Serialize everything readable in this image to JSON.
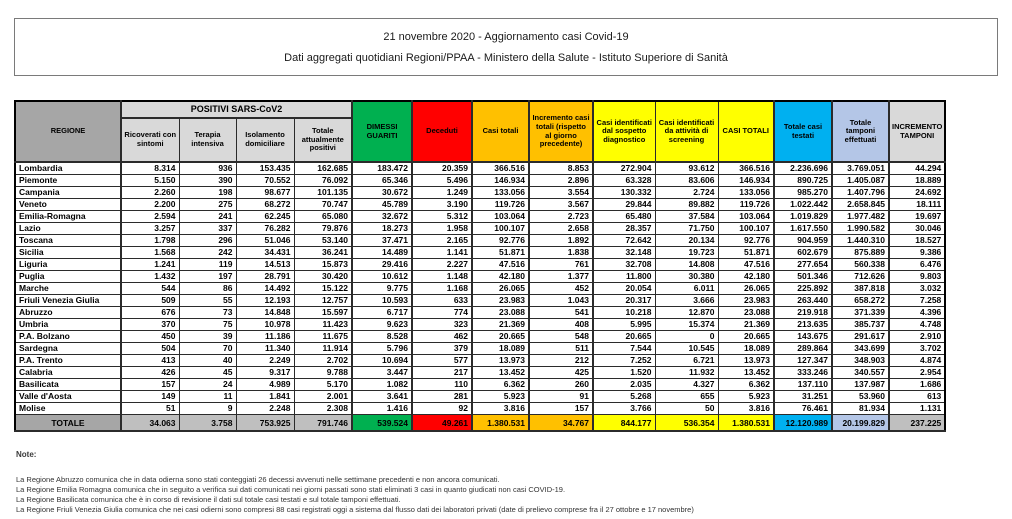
{
  "title": {
    "line1": "21 novembre 2020 - Aggiornamento casi Covid-19",
    "line2": "Dati aggregati quotidiani Regioni/PPAA - Ministero della Salute - Istituto Superiore di Sanità"
  },
  "table": {
    "header": {
      "regione": "REGIONE",
      "positivi_group": "POSITIVI SARS-CoV2",
      "sub": [
        "Ricoverati con sintomi",
        "Terapia intensiva",
        "Isolamento domiciliare",
        "Totale attualmente positivi"
      ],
      "dimessi": "DIMESSI GUARITI",
      "deceduti": "Deceduti",
      "casi_totali": "Casi totali",
      "incremento_casi": "Incremento casi totali (rispetto al giorno precedente)",
      "sospetto": "Casi identificati dal sospetto diagnostico",
      "screening": "Casi identificati da attività di screening",
      "casi_totali_caps": "CASI TOTALI",
      "testati": "Totale casi testati",
      "tamponi": "Totale tamponi effettuati",
      "incremento_tamponi": "INCREMENTO TAMPONI"
    },
    "rows": [
      {
        "name": "Lombardia",
        "values": [
          "8.314",
          "936",
          "153.435",
          "162.685",
          "183.472",
          "20.359",
          "366.516",
          "8.853",
          "272.904",
          "93.612",
          "366.516",
          "2.236.696",
          "3.769.051",
          "44.294"
        ]
      },
      {
        "name": "Piemonte",
        "values": [
          "5.150",
          "390",
          "70.552",
          "76.092",
          "65.346",
          "5.496",
          "146.934",
          "2.896",
          "63.328",
          "83.606",
          "146.934",
          "890.725",
          "1.405.087",
          "18.889"
        ]
      },
      {
        "name": "Campania",
        "values": [
          "2.260",
          "198",
          "98.677",
          "101.135",
          "30.672",
          "1.249",
          "133.056",
          "3.554",
          "130.332",
          "2.724",
          "133.056",
          "985.270",
          "1.407.796",
          "24.692"
        ]
      },
      {
        "name": "Veneto",
        "values": [
          "2.200",
          "275",
          "68.272",
          "70.747",
          "45.789",
          "3.190",
          "119.726",
          "3.567",
          "29.844",
          "89.882",
          "119.726",
          "1.022.442",
          "2.658.845",
          "18.111"
        ]
      },
      {
        "name": "Emilia-Romagna",
        "values": [
          "2.594",
          "241",
          "62.245",
          "65.080",
          "32.672",
          "5.312",
          "103.064",
          "2.723",
          "65.480",
          "37.584",
          "103.064",
          "1.019.829",
          "1.977.482",
          "19.697"
        ]
      },
      {
        "name": "Lazio",
        "values": [
          "3.257",
          "337",
          "76.282",
          "79.876",
          "18.273",
          "1.958",
          "100.107",
          "2.658",
          "28.357",
          "71.750",
          "100.107",
          "1.617.550",
          "1.990.582",
          "30.046"
        ]
      },
      {
        "name": "Toscana",
        "values": [
          "1.798",
          "296",
          "51.046",
          "53.140",
          "37.471",
          "2.165",
          "92.776",
          "1.892",
          "72.642",
          "20.134",
          "92.776",
          "904.959",
          "1.440.310",
          "18.527"
        ]
      },
      {
        "name": "Sicilia",
        "values": [
          "1.568",
          "242",
          "34.431",
          "36.241",
          "14.489",
          "1.141",
          "51.871",
          "1.838",
          "32.148",
          "19.723",
          "51.871",
          "602.679",
          "875.889",
          "9.386"
        ]
      },
      {
        "name": "Liguria",
        "values": [
          "1.241",
          "119",
          "14.513",
          "15.873",
          "29.416",
          "2.227",
          "47.516",
          "761",
          "32.708",
          "14.808",
          "47.516",
          "277.654",
          "560.338",
          "6.476"
        ]
      },
      {
        "name": "Puglia",
        "values": [
          "1.432",
          "197",
          "28.791",
          "30.420",
          "10.612",
          "1.148",
          "42.180",
          "1.377",
          "11.800",
          "30.380",
          "42.180",
          "501.346",
          "712.626",
          "9.803"
        ]
      },
      {
        "name": "Marche",
        "values": [
          "544",
          "86",
          "14.492",
          "15.122",
          "9.775",
          "1.168",
          "26.065",
          "452",
          "20.054",
          "6.011",
          "26.065",
          "225.892",
          "387.818",
          "3.032"
        ]
      },
      {
        "name": "Friuli Venezia Giulia",
        "values": [
          "509",
          "55",
          "12.193",
          "12.757",
          "10.593",
          "633",
          "23.983",
          "1.043",
          "20.317",
          "3.666",
          "23.983",
          "263.440",
          "658.272",
          "7.258"
        ]
      },
      {
        "name": "Abruzzo",
        "values": [
          "676",
          "73",
          "14.848",
          "15.597",
          "6.717",
          "774",
          "23.088",
          "541",
          "10.218",
          "12.870",
          "23.088",
          "219.918",
          "371.339",
          "4.396"
        ]
      },
      {
        "name": "Umbria",
        "values": [
          "370",
          "75",
          "10.978",
          "11.423",
          "9.623",
          "323",
          "21.369",
          "408",
          "5.995",
          "15.374",
          "21.369",
          "213.635",
          "385.737",
          "4.748"
        ]
      },
      {
        "name": "P.A. Bolzano",
        "values": [
          "450",
          "39",
          "11.186",
          "11.675",
          "8.528",
          "462",
          "20.665",
          "548",
          "20.665",
          "0",
          "20.665",
          "143.675",
          "291.617",
          "2.910"
        ]
      },
      {
        "name": "Sardegna",
        "values": [
          "504",
          "70",
          "11.340",
          "11.914",
          "5.796",
          "379",
          "18.089",
          "511",
          "7.544",
          "10.545",
          "18.089",
          "289.864",
          "343.699",
          "3.702"
        ]
      },
      {
        "name": "P.A. Trento",
        "values": [
          "413",
          "40",
          "2.249",
          "2.702",
          "10.694",
          "577",
          "13.973",
          "212",
          "7.252",
          "6.721",
          "13.973",
          "127.347",
          "348.903",
          "4.874"
        ]
      },
      {
        "name": "Calabria",
        "values": [
          "426",
          "45",
          "9.317",
          "9.788",
          "3.447",
          "217",
          "13.452",
          "425",
          "1.520",
          "11.932",
          "13.452",
          "333.246",
          "340.557",
          "2.954"
        ]
      },
      {
        "name": "Basilicata",
        "values": [
          "157",
          "24",
          "4.989",
          "5.170",
          "1.082",
          "110",
          "6.362",
          "260",
          "2.035",
          "4.327",
          "6.362",
          "137.110",
          "137.987",
          "1.686"
        ]
      },
      {
        "name": "Valle d'Aosta",
        "values": [
          "149",
          "11",
          "1.841",
          "2.001",
          "3.641",
          "281",
          "5.923",
          "91",
          "5.268",
          "655",
          "5.923",
          "31.251",
          "53.960",
          "613"
        ]
      },
      {
        "name": "Molise",
        "values": [
          "51",
          "9",
          "2.248",
          "2.308",
          "1.416",
          "92",
          "3.816",
          "157",
          "3.766",
          "50",
          "3.816",
          "76.461",
          "81.934",
          "1.131"
        ]
      }
    ],
    "total": {
      "label": "TOTALE",
      "values": [
        "34.063",
        "3.758",
        "753.925",
        "791.746",
        "539.524",
        "49.261",
        "1.380.531",
        "34.767",
        "844.177",
        "536.354",
        "1.380.531",
        "12.120.989",
        "20.199.829",
        "237.225"
      ]
    }
  },
  "notes": {
    "heading": "Note:",
    "items": [
      "La Regione Abruzzo comunica che in data odierna sono stati conteggiati 26 decessi avvenuti nelle settimane precedenti e non ancora comunicati.",
      "La Regione Emilia Romagna comunica che in seguito a verifica sui dati comunicati nei giorni passati sono stati eliminati 3 casi in quanto giudicati non casi COVID-19.",
      "La Regione Basilicata comunica che è in corso di revisione il dati sul totale casi testati e sul totale tamponi effettuati.",
      "La Regione Friuli Venezia Giulia comunica che nei casi odierni sono compresi 88 casi registrati oggi a sistema dal flusso dati dei laboratori privati (date di prelievo comprese fra il 27 ottobre e 17 novembre)"
    ]
  },
  "colors": {
    "hdr_dark": "#A6A6A6",
    "hdr_light": "#D9D9D9",
    "green": "#00B050",
    "red": "#FF0000",
    "orange": "#FFC000",
    "yellow": "#FFFF00",
    "blue": "#00B0F0",
    "periwinkle": "#B4C6E7",
    "total_gray": "#BFBFBF"
  }
}
